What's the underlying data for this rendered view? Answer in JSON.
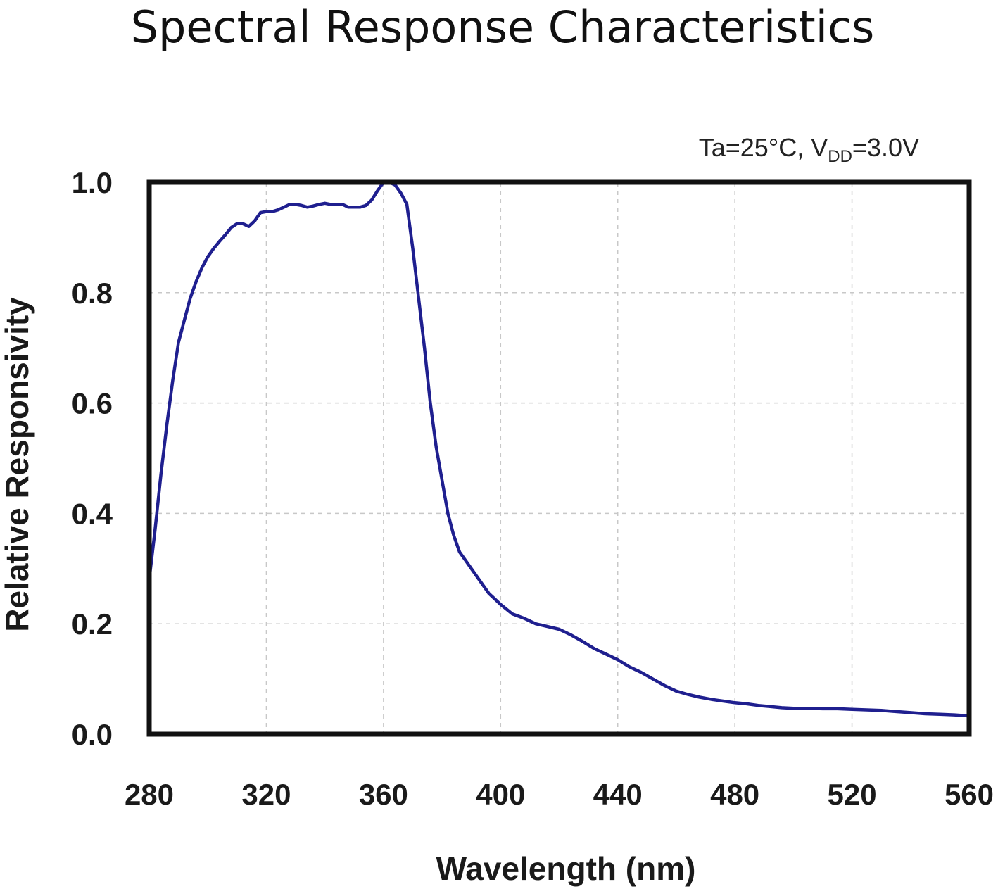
{
  "chart_data": {
    "type": "line",
    "title": "Spectral Response Characteristics",
    "condition": {
      "prefix": "Ta=25°C, V",
      "subscript": "DD",
      "suffix": "=3.0V"
    },
    "xlabel": "Wavelength (nm)",
    "ylabel": "Relative Responsivity",
    "xlim": [
      280,
      560
    ],
    "ylim": [
      0,
      1.0
    ],
    "x_ticks": [
      "280",
      "320",
      "360",
      "400",
      "440",
      "480",
      "520",
      "560"
    ],
    "y_ticks": [
      "0.0",
      "0.2",
      "0.4",
      "0.6",
      "0.8",
      "1.0"
    ],
    "grid": true,
    "series": [
      {
        "name": "Relative Responsivity",
        "color": "#1f1f8f",
        "x": [
          280,
          282,
          284,
          286,
          288,
          290,
          292,
          294,
          296,
          298,
          300,
          302,
          304,
          306,
          308,
          310,
          312,
          314,
          316,
          318,
          320,
          322,
          324,
          326,
          328,
          330,
          332,
          334,
          336,
          338,
          340,
          342,
          344,
          346,
          348,
          350,
          352,
          354,
          356,
          358,
          360,
          362,
          364,
          366,
          368,
          370,
          372,
          374,
          376,
          378,
          380,
          382,
          384,
          386,
          388,
          390,
          392,
          394,
          396,
          398,
          400,
          404,
          408,
          412,
          416,
          420,
          424,
          428,
          432,
          436,
          440,
          444,
          448,
          452,
          456,
          460,
          464,
          468,
          472,
          476,
          480,
          484,
          488,
          492,
          496,
          500,
          505,
          510,
          515,
          520,
          525,
          530,
          535,
          540,
          545,
          550,
          555,
          560
        ],
        "y": [
          0.28,
          0.37,
          0.47,
          0.56,
          0.64,
          0.71,
          0.75,
          0.79,
          0.82,
          0.845,
          0.865,
          0.88,
          0.893,
          0.905,
          0.918,
          0.925,
          0.925,
          0.92,
          0.93,
          0.945,
          0.947,
          0.947,
          0.95,
          0.955,
          0.96,
          0.96,
          0.958,
          0.955,
          0.957,
          0.96,
          0.962,
          0.96,
          0.96,
          0.96,
          0.955,
          0.955,
          0.955,
          0.958,
          0.968,
          0.985,
          1.0,
          1.0,
          0.995,
          0.98,
          0.96,
          0.88,
          0.79,
          0.7,
          0.6,
          0.52,
          0.46,
          0.4,
          0.36,
          0.33,
          0.315,
          0.3,
          0.285,
          0.27,
          0.255,
          0.245,
          0.235,
          0.218,
          0.21,
          0.2,
          0.195,
          0.19,
          0.18,
          0.168,
          0.155,
          0.145,
          0.135,
          0.122,
          0.112,
          0.1,
          0.088,
          0.078,
          0.072,
          0.067,
          0.063,
          0.06,
          0.057,
          0.055,
          0.052,
          0.05,
          0.048,
          0.047,
          0.047,
          0.046,
          0.046,
          0.045,
          0.044,
          0.043,
          0.041,
          0.039,
          0.037,
          0.036,
          0.035,
          0.033
        ]
      }
    ]
  }
}
